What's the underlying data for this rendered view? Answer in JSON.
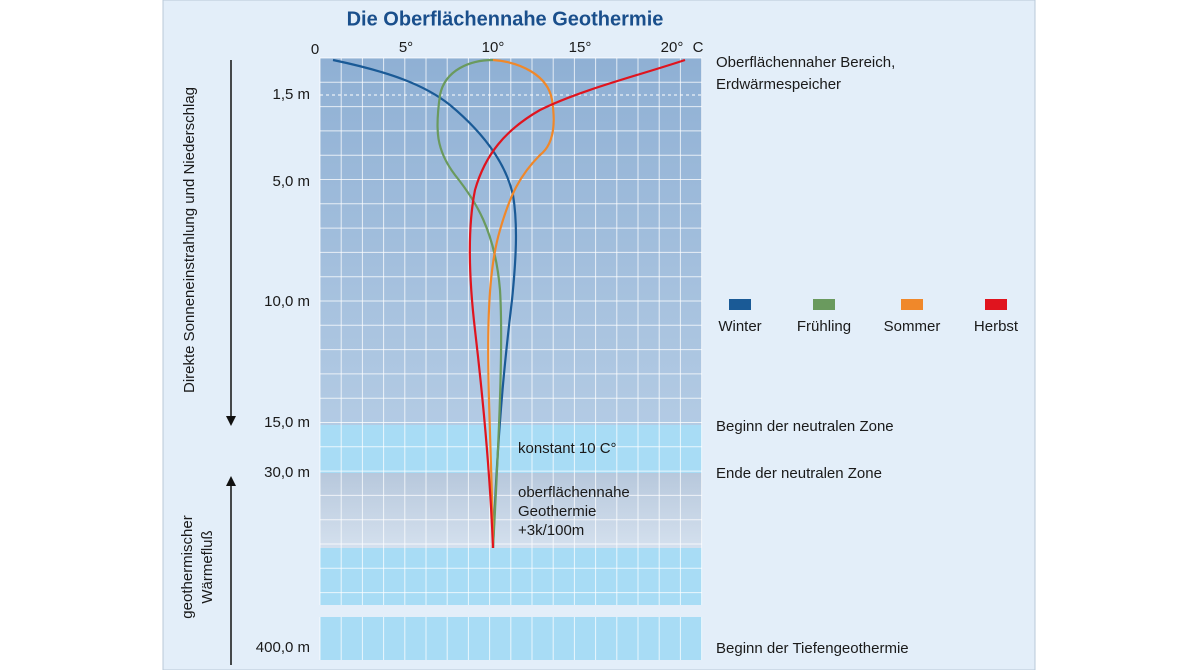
{
  "title": "Die Oberflächennahe Geothermie",
  "temperature_axis": {
    "ticks": [
      "0",
      "5°",
      "10°",
      "15°",
      "20°"
    ],
    "unit": "C"
  },
  "depth_labels": [
    "1,5 m",
    "5,0 m",
    "10,0 m",
    "15,0 m",
    "30,0 m",
    "400,0 m"
  ],
  "zone_labels": [
    "Oberflächennaher Bereich,",
    "Erdwärmespeicher",
    "Beginn der neutralen Zone",
    "Ende der neutralen Zone",
    "Beginn der Tiefengeothermie"
  ],
  "inner_notes": [
    "konstant 10 C°",
    "oberflächennahe",
    "Geothermie",
    "+3k/100m"
  ],
  "side_labels": [
    "Direkte Sonneneinstrahlung und Niederschlag",
    "geothermischer",
    "Wärmefluß"
  ],
  "legend": [
    {
      "name": "Winter",
      "color": "#1a5a96"
    },
    {
      "name": "Frühling",
      "color": "#6a9a5e"
    },
    {
      "name": "Sommer",
      "color": "#f0882a"
    },
    {
      "name": "Herbst",
      "color": "#e0141e"
    }
  ]
}
